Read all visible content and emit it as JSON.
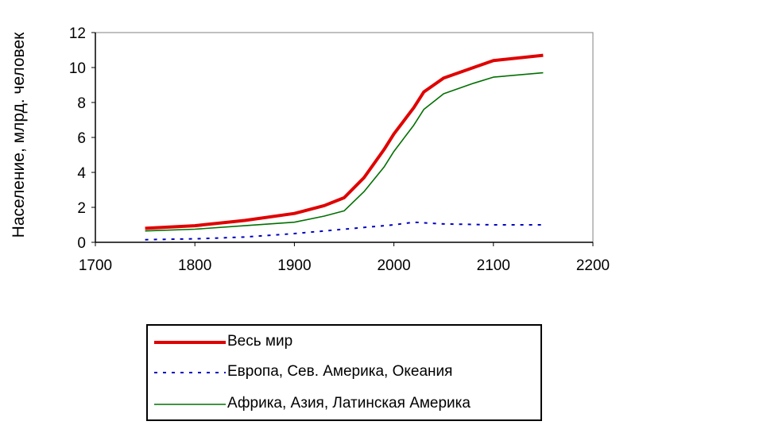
{
  "chart_data": {
    "type": "line",
    "xlabel": "",
    "ylabel": "Население, млрд. человек",
    "xlim": [
      1700,
      2200
    ],
    "ylim": [
      0,
      12
    ],
    "x_ticks": [
      "1700",
      "1800",
      "1900",
      "2000",
      "2100",
      "2200"
    ],
    "y_ticks": [
      "0",
      "2",
      "4",
      "6",
      "8",
      "10",
      "12"
    ],
    "grid": false,
    "legend_position": "bottom",
    "series": [
      {
        "name": "Весь мир",
        "color": "#e00000",
        "style": "solid-thick",
        "x": [
          1750,
          1800,
          1850,
          1900,
          1930,
          1950,
          1970,
          1990,
          2000,
          2020,
          2030,
          2050,
          2080,
          2100,
          2150
        ],
        "y": [
          0.8,
          0.95,
          1.25,
          1.65,
          2.1,
          2.55,
          3.7,
          5.3,
          6.2,
          7.7,
          8.6,
          9.4,
          10.0,
          10.4,
          10.7
        ]
      },
      {
        "name": "Европа, Сев. Америка, Океания",
        "color": "#0000c0",
        "style": "dotted",
        "x": [
          1750,
          1800,
          1850,
          1900,
          1950,
          1970,
          2000,
          2020,
          2050,
          2100,
          2150
        ],
        "y": [
          0.15,
          0.2,
          0.3,
          0.5,
          0.75,
          0.85,
          1.0,
          1.15,
          1.05,
          1.0,
          1.0
        ]
      },
      {
        "name": "Африка, Азия, Латинская Америка",
        "color": "#007000",
        "style": "solid-thin",
        "x": [
          1750,
          1800,
          1850,
          1900,
          1930,
          1950,
          1970,
          1990,
          2000,
          2020,
          2030,
          2050,
          2080,
          2100,
          2150
        ],
        "y": [
          0.65,
          0.75,
          0.95,
          1.15,
          1.5,
          1.8,
          2.9,
          4.3,
          5.2,
          6.7,
          7.6,
          8.5,
          9.1,
          9.45,
          9.7
        ]
      }
    ]
  }
}
